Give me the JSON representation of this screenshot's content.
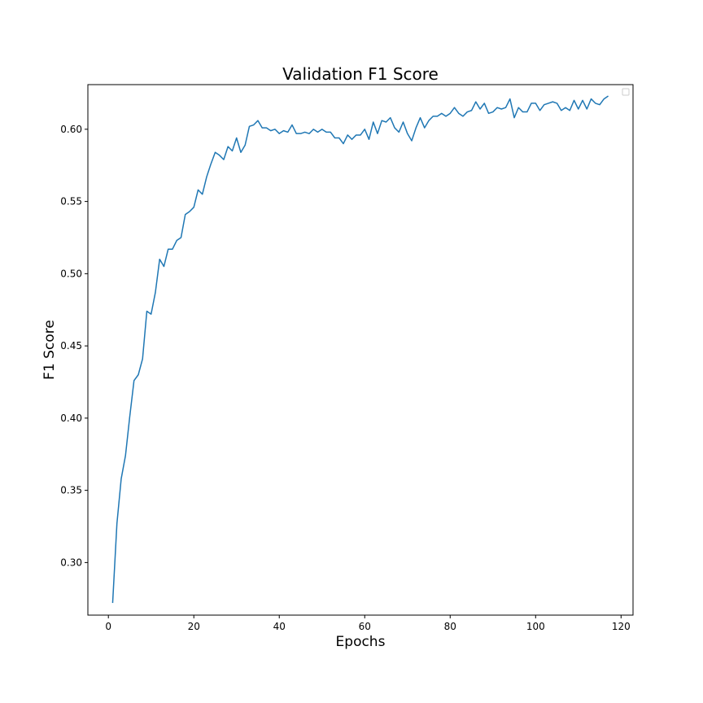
{
  "chart_data": {
    "type": "line",
    "title": "Validation F1 Score",
    "xlabel": "Epochs",
    "ylabel": "F1 Score",
    "xlim": [
      -4.8,
      122.8
    ],
    "ylim": [
      0.2636,
      0.6309
    ],
    "xticks": [
      0,
      20,
      40,
      60,
      80,
      100,
      120
    ],
    "yticks": [
      0.3,
      0.35,
      0.4,
      0.45,
      0.5,
      0.55,
      0.6
    ],
    "grid": false,
    "legend": {
      "placement": "top-right",
      "entries": []
    },
    "colors": {
      "series": "#1f77b4"
    },
    "x": [
      1,
      2,
      3,
      4,
      5,
      6,
      7,
      8,
      9,
      10,
      11,
      12,
      13,
      14,
      15,
      16,
      17,
      18,
      19,
      20,
      21,
      22,
      23,
      24,
      25,
      26,
      27,
      28,
      29,
      30,
      31,
      32,
      33,
      34,
      35,
      36,
      37,
      38,
      39,
      40,
      41,
      42,
      43,
      44,
      45,
      46,
      47,
      48,
      49,
      50,
      51,
      52,
      53,
      54,
      55,
      56,
      57,
      58,
      59,
      60,
      61,
      62,
      63,
      64,
      65,
      66,
      67,
      68,
      69,
      70,
      71,
      72,
      73,
      74,
      75,
      76,
      77,
      78,
      79,
      80,
      81,
      82,
      83,
      84,
      85,
      86,
      87,
      88,
      89,
      90,
      91,
      92,
      93,
      94,
      95,
      96,
      97,
      98,
      99,
      100,
      101,
      102,
      103,
      104,
      105,
      106,
      107,
      108,
      109,
      110,
      111,
      112,
      113,
      114,
      115,
      116,
      117
    ],
    "series": [
      {
        "values": [
          0.272,
          0.327,
          0.358,
          0.374,
          0.401,
          0.426,
          0.43,
          0.441,
          0.474,
          0.472,
          0.487,
          0.51,
          0.505,
          0.517,
          0.517,
          0.523,
          0.525,
          0.541,
          0.543,
          0.546,
          0.558,
          0.555,
          0.567,
          0.576,
          0.584,
          0.582,
          0.579,
          0.588,
          0.585,
          0.594,
          0.584,
          0.589,
          0.602,
          0.603,
          0.606,
          0.601,
          0.601,
          0.599,
          0.6,
          0.597,
          0.599,
          0.598,
          0.603,
          0.597,
          0.597,
          0.598,
          0.597,
          0.6,
          0.598,
          0.6,
          0.598,
          0.598,
          0.594,
          0.594,
          0.59,
          0.596,
          0.593,
          0.596,
          0.596,
          0.6,
          0.593,
          0.605,
          0.597,
          0.606,
          0.605,
          0.608,
          0.601,
          0.598,
          0.605,
          0.597,
          0.592,
          0.601,
          0.608,
          0.601,
          0.606,
          0.609,
          0.609,
          0.611,
          0.609,
          0.611,
          0.615,
          0.611,
          0.609,
          0.612,
          0.613,
          0.619,
          0.614,
          0.618,
          0.611,
          0.612,
          0.615,
          0.614,
          0.615,
          0.621,
          0.608,
          0.615,
          0.612,
          0.612,
          0.618,
          0.618,
          0.613,
          0.617,
          0.618,
          0.619,
          0.618,
          0.613,
          0.615,
          0.613,
          0.62,
          0.614,
          0.62,
          0.614,
          0.621,
          0.618,
          0.617,
          0.621,
          0.623
        ]
      }
    ]
  }
}
